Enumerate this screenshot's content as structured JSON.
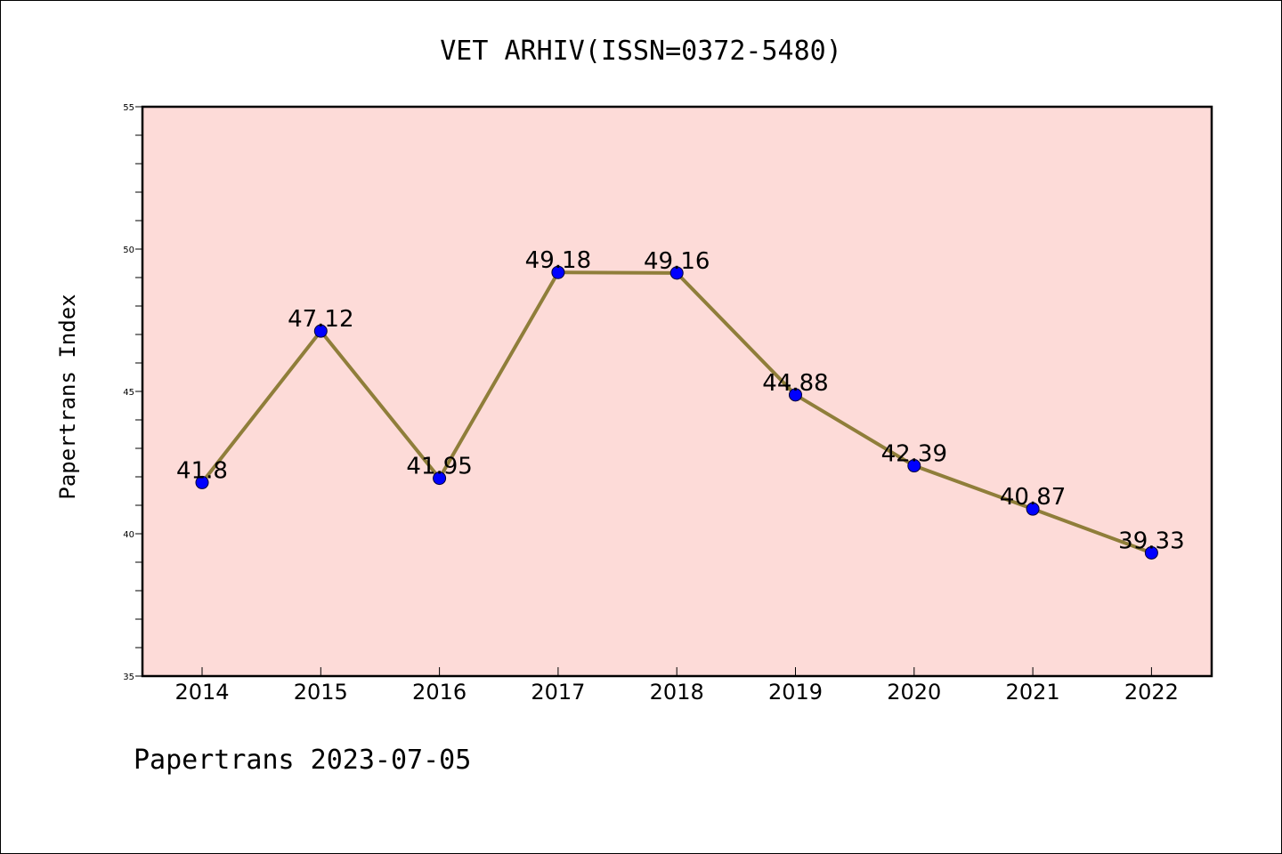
{
  "chart_data": {
    "type": "line",
    "title": "VET ARHIV(ISSN=0372-5480)",
    "xlabel": "",
    "ylabel": "Papertrans Index",
    "footer": "Papertrans 2023-07-05",
    "categories": [
      "2014",
      "2015",
      "2016",
      "2017",
      "2018",
      "2019",
      "2020",
      "2021",
      "2022"
    ],
    "series": [
      {
        "values": [
          41.8,
          47.12,
          41.95,
          49.18,
          49.16,
          44.88,
          42.39,
          40.87,
          39.33
        ],
        "data_labels": [
          "41.8",
          "47.12",
          "41.95",
          "49.18",
          "49.16",
          "44.88",
          "42.39",
          "40.87",
          "39.33"
        ]
      }
    ],
    "ylim": [
      35,
      55
    ],
    "yticks": [
      "35",
      "40",
      "45",
      "50",
      "55"
    ],
    "y_minor_step": 1,
    "grid": false,
    "legend": "none",
    "colors": {
      "plot_background": "#fddbd8",
      "line": "#8f7e3a",
      "marker": "#0000ff",
      "axes": "#000000"
    }
  }
}
